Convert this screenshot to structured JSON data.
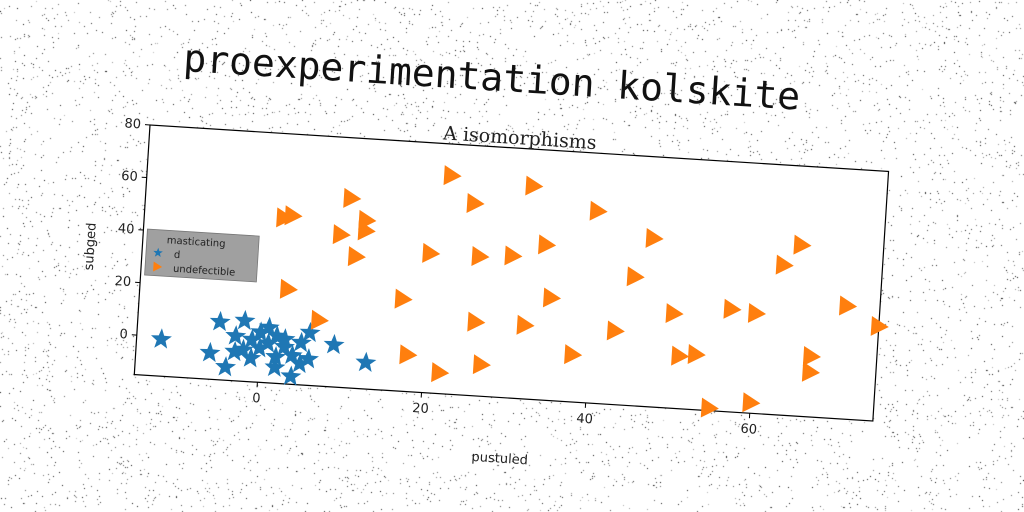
{
  "suptitle": "proexperimentation kolskite",
  "chart_data": {
    "type": "scatter",
    "title": "A isomorphisms",
    "xlabel": "pustuled",
    "ylabel": "subged",
    "xlim": [
      -15,
      75
    ],
    "ylim": [
      -15,
      80
    ],
    "xticks": [
      0,
      20,
      40,
      60
    ],
    "yticks": [
      0,
      20,
      40,
      60,
      80
    ],
    "grid": false,
    "legend": {
      "title": "masticating",
      "placement": "upper-left"
    },
    "series": [
      {
        "name": "d",
        "marker": "star",
        "color": "#1f77b4",
        "points": [
          [
            -12,
            -1
          ],
          [
            -6,
            -5
          ],
          [
            -5,
            7
          ],
          [
            -4,
            -10
          ],
          [
            -3,
            2
          ],
          [
            -3,
            -4
          ],
          [
            -2,
            8
          ],
          [
            -2,
            -3
          ],
          [
            -1,
            1
          ],
          [
            -1,
            -6
          ],
          [
            0,
            4
          ],
          [
            0,
            -2
          ],
          [
            1,
            6
          ],
          [
            1,
            0
          ],
          [
            2,
            -5
          ],
          [
            2,
            3
          ],
          [
            2,
            -9
          ],
          [
            3,
            -1
          ],
          [
            3,
            2
          ],
          [
            4,
            -4
          ],
          [
            4,
            -12
          ],
          [
            5,
            1
          ],
          [
            5,
            -7
          ],
          [
            6,
            -5
          ],
          [
            6,
            5
          ],
          [
            9,
            1
          ],
          [
            13,
            -5
          ]
        ]
      },
      {
        "name": "undefectible",
        "marker": "triangle-right",
        "color": "#ff7f0e",
        "points": [
          [
            2,
            48
          ],
          [
            3,
            49
          ],
          [
            3,
            21
          ],
          [
            7,
            10
          ],
          [
            9,
            43
          ],
          [
            10,
            57
          ],
          [
            11,
            35
          ],
          [
            12,
            45
          ],
          [
            12,
            49
          ],
          [
            17,
            20
          ],
          [
            18,
            -1
          ],
          [
            20,
            38
          ],
          [
            22,
            68
          ],
          [
            22,
            -7
          ],
          [
            25,
            58
          ],
          [
            26,
            13
          ],
          [
            26,
            38
          ],
          [
            27,
            -3
          ],
          [
            30,
            39
          ],
          [
            32,
            66
          ],
          [
            32,
            13
          ],
          [
            34,
            44
          ],
          [
            35,
            24
          ],
          [
            38,
            3
          ],
          [
            40,
            58
          ],
          [
            43,
            13
          ],
          [
            45,
            34
          ],
          [
            47,
            49
          ],
          [
            50,
            21
          ],
          [
            51,
            5
          ],
          [
            53,
            6
          ],
          [
            55,
            -14
          ],
          [
            57,
            24
          ],
          [
            60,
            23
          ],
          [
            60,
            -11
          ],
          [
            63,
            42
          ],
          [
            65,
            50
          ],
          [
            67,
            8
          ],
          [
            67,
            2
          ],
          [
            71,
            28
          ],
          [
            75,
            21
          ]
        ]
      }
    ]
  }
}
